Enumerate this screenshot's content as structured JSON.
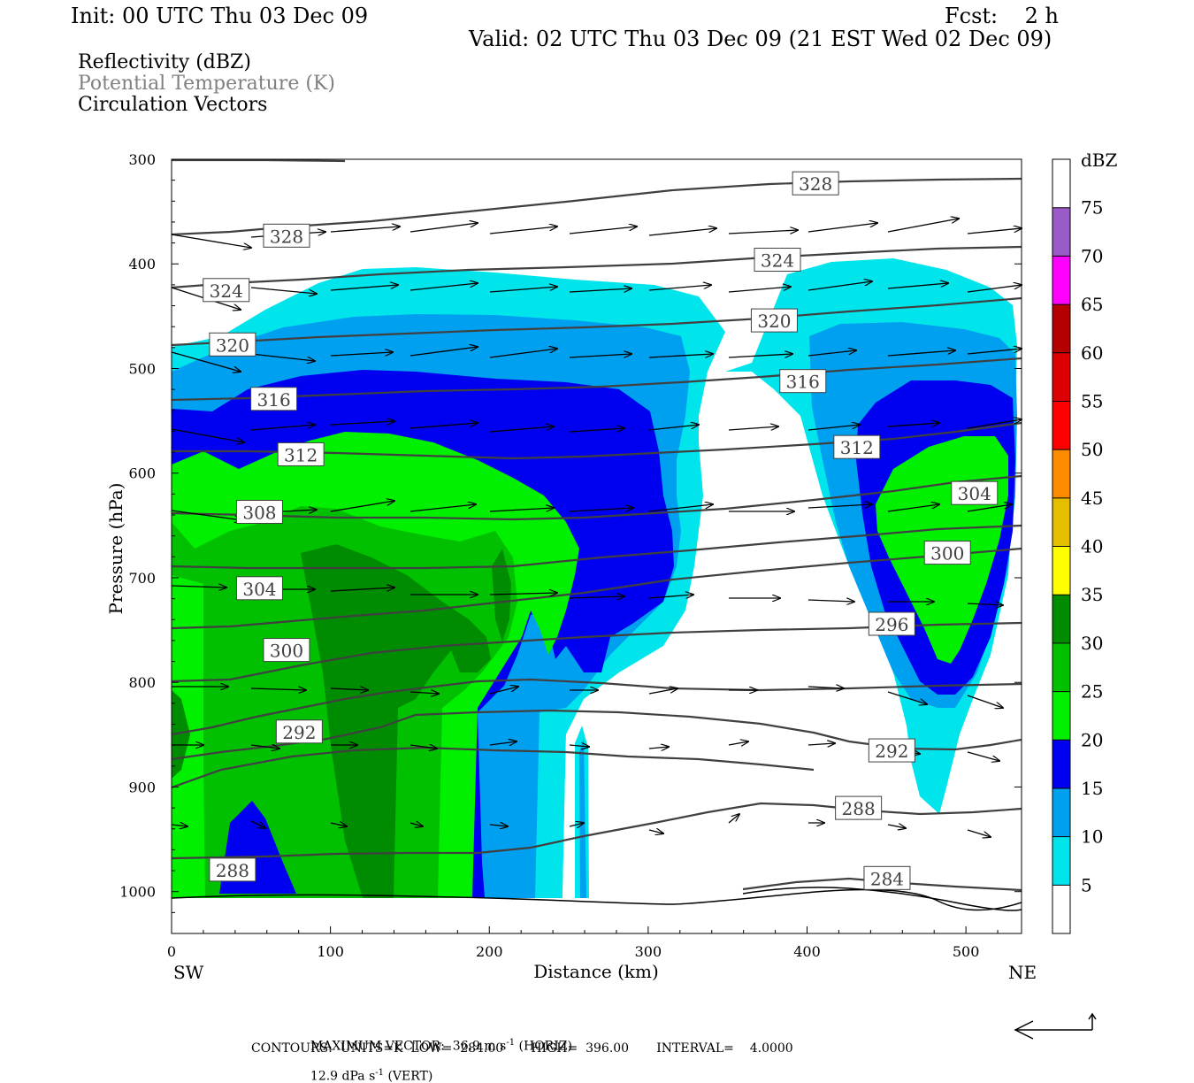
{
  "header": {
    "init": "Init: 00 UTC Thu 03 Dec 09",
    "fcst": "Fcst:    2 h",
    "valid": "Valid: 02 UTC Thu 03 Dec 09 (21 EST Wed 02 Dec 09)"
  },
  "fields": {
    "reflectivity": "Reflectivity (dBZ)",
    "theta": "Potential Temperature (K)",
    "vectors": "Circulation Vectors"
  },
  "footer": {
    "max_vector": "MAXIMUM VECTOR:  36.9 m s",
    "horiz_unit": "-1",
    "horiz": "(HORIZ)",
    "vert_val": "12.9 dPa s",
    "vert_unit": "-1",
    "vert": "(VERT)",
    "contours": "CONTOURS:  UNITS=K  LOW=  284.00       HIGH=  396.00       INTERVAL=    4.0000"
  },
  "colors": {
    "cyan": "#00e5ec",
    "lightblue": "#00a0f0",
    "blue": "#0000f0",
    "lightgreen": "#00f000",
    "green": "#00c000",
    "darkgreen": "#008c00",
    "contour": "#404040"
  },
  "chart_data": {
    "type": "contour",
    "xlabel": "Distance (km)",
    "ylabel": "Pressure (hPa)",
    "xlim": [
      0,
      535
    ],
    "ylim": [
      1040,
      300
    ],
    "x_ticks": [
      0,
      100,
      200,
      300,
      400,
      500
    ],
    "y_ticks": [
      300,
      400,
      500,
      600,
      700,
      800,
      900,
      1000
    ],
    "x_tick_labels": [
      "0",
      "100",
      "200",
      "300",
      "400",
      "500"
    ],
    "y_tick_labels": [
      "300",
      "400",
      "500",
      "600",
      "700",
      "800",
      "900",
      "1000"
    ],
    "left_label": "SW",
    "right_label": "NE",
    "colorbar": {
      "unit": "dBZ",
      "levels": [
        5,
        10,
        15,
        20,
        25,
        30,
        35,
        40,
        45,
        50,
        55,
        60,
        65,
        70,
        75
      ],
      "labels": [
        "5",
        "10",
        "15",
        "20",
        "25",
        "30",
        "35",
        "40",
        "45",
        "50",
        "55",
        "60",
        "65",
        "70",
        "75"
      ],
      "colors": [
        "#ffffff",
        "#00e5ec",
        "#00a0f0",
        "#0000f0",
        "#00f000",
        "#00c000",
        "#008c00",
        "#ffff00",
        "#e6be00",
        "#ff8c00",
        "#ff0000",
        "#dc0000",
        "#b40000",
        "#ff00ff",
        "#9a5ac8",
        "#ffffff"
      ]
    },
    "contour_labels": [
      {
        "text": "328",
        "x": 392,
        "p": 323
      },
      {
        "text": "328",
        "x": 59,
        "p": 373
      },
      {
        "text": "324",
        "x": 368,
        "p": 396
      },
      {
        "text": "324",
        "x": 21,
        "p": 425
      },
      {
        "text": "320",
        "x": 366,
        "p": 454
      },
      {
        "text": "320",
        "x": 25,
        "p": 477
      },
      {
        "text": "316",
        "x": 384,
        "p": 512
      },
      {
        "text": "316",
        "x": 51,
        "p": 529
      },
      {
        "text": "312",
        "x": 418,
        "p": 575
      },
      {
        "text": "312",
        "x": 68,
        "p": 582
      },
      {
        "text": "308",
        "x": 42,
        "p": 637
      },
      {
        "text": "304",
        "x": 492,
        "p": 619
      },
      {
        "text": "304",
        "x": 42,
        "p": 710
      },
      {
        "text": "300",
        "x": 475,
        "p": 676
      },
      {
        "text": "300",
        "x": 59,
        "p": 769
      },
      {
        "text": "296",
        "x": 440,
        "p": 744
      },
      {
        "text": "292",
        "x": 67,
        "p": 847
      },
      {
        "text": "292",
        "x": 440,
        "p": 865
      },
      {
        "text": "288",
        "x": 419,
        "p": 920
      },
      {
        "text": "288",
        "x": 25,
        "p": 979
      },
      {
        "text": "284",
        "x": 437,
        "p": 987
      }
    ],
    "vectors_note": "Circulation vectors"
  }
}
